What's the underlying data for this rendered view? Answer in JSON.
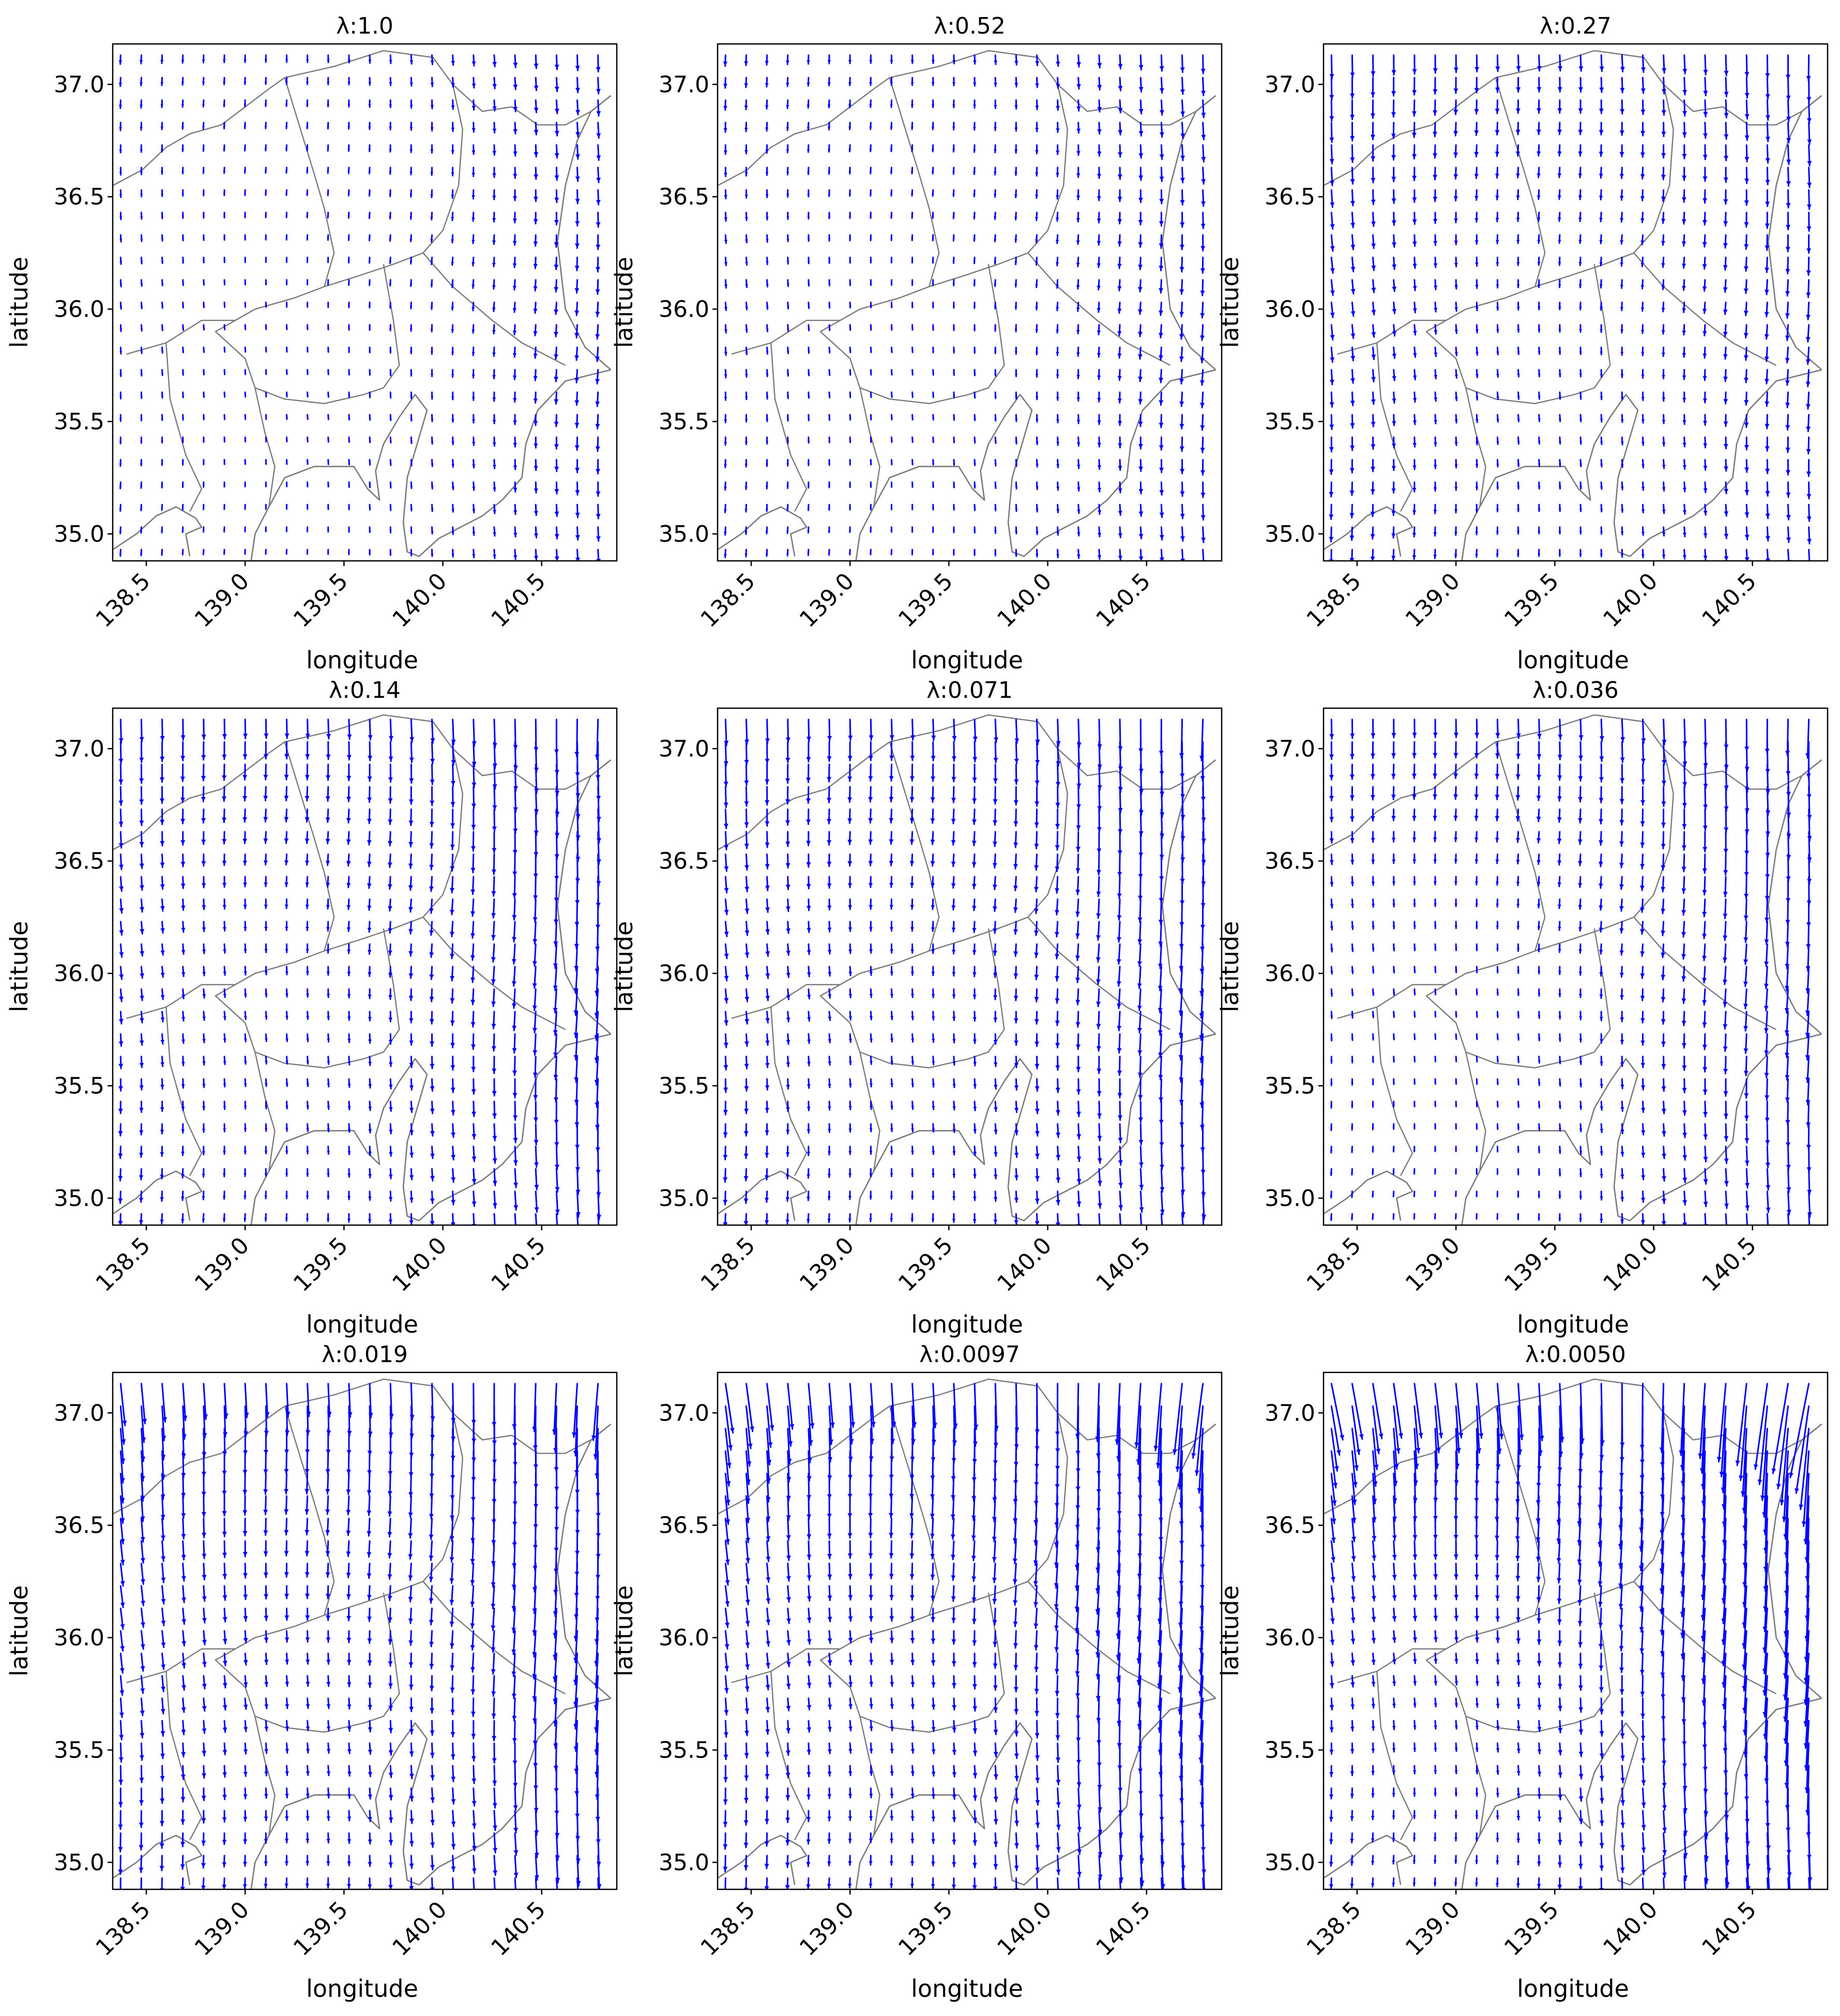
{
  "chart_data": [
    {
      "type": "quiver",
      "title": "λ:1.0",
      "xlabel": "longitude",
      "ylabel": "latitude",
      "xticks": [
        "138.5",
        "139.0",
        "139.5",
        "140.0",
        "140.5"
      ],
      "yticks": [
        "35.0",
        "35.5",
        "36.0",
        "36.5",
        "37.0"
      ],
      "xlim": [
        138.33,
        140.88
      ],
      "ylim": [
        34.88,
        37.18
      ],
      "east_vector_strength": 0.45,
      "north_vector_strength": 0.1,
      "west_vector_strength": 0.15,
      "vector_direction": "south"
    },
    {
      "type": "quiver",
      "title": "λ:0.52",
      "xlabel": "longitude",
      "ylabel": "latitude",
      "xticks": [
        "138.5",
        "139.0",
        "139.5",
        "140.0",
        "140.5"
      ],
      "yticks": [
        "35.0",
        "35.5",
        "36.0",
        "36.5",
        "37.0"
      ],
      "xlim": [
        138.33,
        140.88
      ],
      "ylim": [
        34.88,
        37.18
      ],
      "east_vector_strength": 0.5,
      "north_vector_strength": 0.12,
      "west_vector_strength": 0.2,
      "vector_direction": "south"
    },
    {
      "type": "quiver",
      "title": "λ:0.27",
      "xlabel": "longitude",
      "ylabel": "latitude",
      "xticks": [
        "138.5",
        "139.0",
        "139.5",
        "140.0",
        "140.5"
      ],
      "yticks": [
        "35.0",
        "35.5",
        "36.0",
        "36.5",
        "37.0"
      ],
      "xlim": [
        138.33,
        140.88
      ],
      "ylim": [
        34.88,
        37.18
      ],
      "east_vector_strength": 0.55,
      "north_vector_strength": 0.35,
      "west_vector_strength": 0.45,
      "vector_direction": "south"
    },
    {
      "type": "quiver",
      "title": "λ:0.14",
      "xlabel": "longitude",
      "ylabel": "latitude",
      "xticks": [
        "138.5",
        "139.0",
        "139.5",
        "140.0",
        "140.5"
      ],
      "yticks": [
        "35.0",
        "35.5",
        "36.0",
        "36.5",
        "37.0"
      ],
      "xlim": [
        138.33,
        140.88
      ],
      "ylim": [
        34.88,
        37.18
      ],
      "east_vector_strength": 1.0,
      "north_vector_strength": 0.45,
      "west_vector_strength": 0.35,
      "vector_direction": "south"
    },
    {
      "type": "quiver",
      "title": "λ:0.071",
      "xlabel": "longitude",
      "ylabel": "latitude",
      "xticks": [
        "138.5",
        "139.0",
        "139.5",
        "140.0",
        "140.5"
      ],
      "yticks": [
        "35.0",
        "35.5",
        "36.0",
        "36.5",
        "37.0"
      ],
      "xlim": [
        138.33,
        140.88
      ],
      "ylim": [
        34.88,
        37.18
      ],
      "east_vector_strength": 1.0,
      "north_vector_strength": 0.5,
      "west_vector_strength": 0.4,
      "vector_direction": "south"
    },
    {
      "type": "quiver",
      "title": "λ:0.036",
      "xlabel": "longitude",
      "ylabel": "latitude",
      "xticks": [
        "138.5",
        "139.0",
        "139.5",
        "140.0",
        "140.5"
      ],
      "yticks": [
        "35.0",
        "35.5",
        "36.0",
        "36.5",
        "37.0"
      ],
      "xlim": [
        138.33,
        140.88
      ],
      "ylim": [
        34.88,
        37.18
      ],
      "east_vector_strength": 0.9,
      "north_vector_strength": 0.5,
      "west_vector_strength": 0.15,
      "vector_direction": "south"
    },
    {
      "type": "quiver",
      "title": "λ:0.019",
      "xlabel": "longitude",
      "ylabel": "latitude",
      "xticks": [
        "138.5",
        "139.0",
        "139.5",
        "140.0",
        "140.5"
      ],
      "yticks": [
        "35.0",
        "35.5",
        "36.0",
        "36.5",
        "37.0"
      ],
      "xlim": [
        138.33,
        140.88
      ],
      "ylim": [
        34.88,
        37.18
      ],
      "east_vector_strength": 1.2,
      "north_vector_strength": 0.9,
      "west_vector_strength": 0.6,
      "vector_direction": "south"
    },
    {
      "type": "quiver",
      "title": "λ:0.0097",
      "xlabel": "longitude",
      "ylabel": "latitude",
      "xticks": [
        "138.5",
        "139.0",
        "139.5",
        "140.0",
        "140.5"
      ],
      "yticks": [
        "35.0",
        "35.5",
        "36.0",
        "36.5",
        "37.0"
      ],
      "xlim": [
        138.33,
        140.88
      ],
      "ylim": [
        34.88,
        37.18
      ],
      "east_vector_strength": 1.5,
      "north_vector_strength": 1.3,
      "west_vector_strength": 0.5,
      "vector_direction": "south"
    },
    {
      "type": "quiver",
      "title": "λ:0.0050",
      "xlabel": "longitude",
      "ylabel": "latitude",
      "xticks": [
        "138.5",
        "139.0",
        "139.5",
        "140.0",
        "140.5"
      ],
      "yticks": [
        "35.0",
        "35.5",
        "36.0",
        "36.5",
        "37.0"
      ],
      "xlim": [
        138.33,
        140.88
      ],
      "ylim": [
        34.88,
        37.18
      ],
      "east_vector_strength": 1.8,
      "north_vector_strength": 1.8,
      "west_vector_strength": 0.3,
      "vector_direction": "south"
    }
  ],
  "colors": {
    "arrow": "#0000ff",
    "coastline": "#7a7a7a",
    "frame": "#000000"
  }
}
